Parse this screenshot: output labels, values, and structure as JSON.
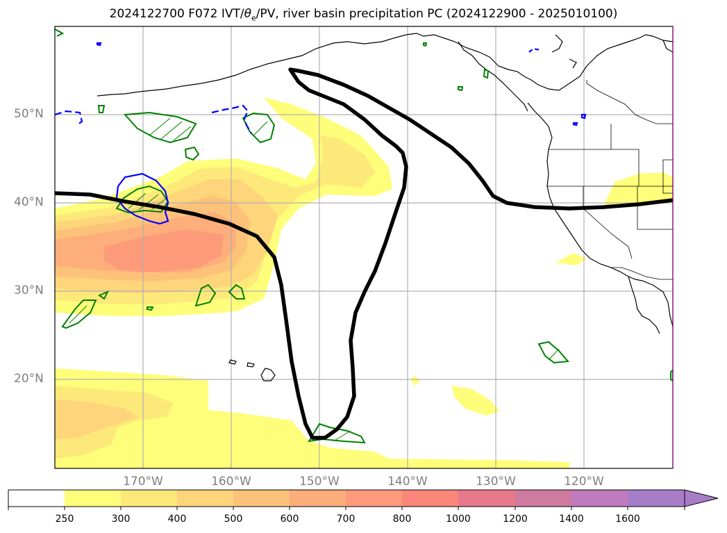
{
  "title": {
    "prefix": "2024122700 F072 IVT/",
    "theta": "θ",
    "theta_sub": "e",
    "suffix": "/PV, river basin precipitation PC (2024122900 - 2025010100)"
  },
  "map": {
    "lat_labels": [
      "50°N",
      "40°N",
      "30°N",
      "20°N"
    ],
    "lon_labels": [
      "170°W",
      "160°W",
      "150°W",
      "140°W",
      "130°W",
      "120°W"
    ],
    "extent": {
      "lon_min": -180,
      "lon_max": -110,
      "lat_min": 10,
      "lat_max": 60
    },
    "grid": true
  },
  "colorbar": {
    "levels": [
      "250",
      "300",
      "400",
      "500",
      "600",
      "700",
      "800",
      "1000",
      "1200",
      "1400",
      "1600"
    ],
    "colors": [
      "#ffffff",
      "#fefe7a",
      "#fde97a",
      "#fed57a",
      "#fdc27a",
      "#fdae7a",
      "#fd9a7a",
      "#fb867a",
      "#e67a8a",
      "#cf7ba0",
      "#bf7bbf",
      "#a87dc8"
    ],
    "extend": "max"
  },
  "colors": {
    "pv_contour": "#000000",
    "green_contour": "#008000",
    "blue_contour": "#0000ff",
    "grid": "#b0b0b0",
    "coast": "#000000"
  }
}
